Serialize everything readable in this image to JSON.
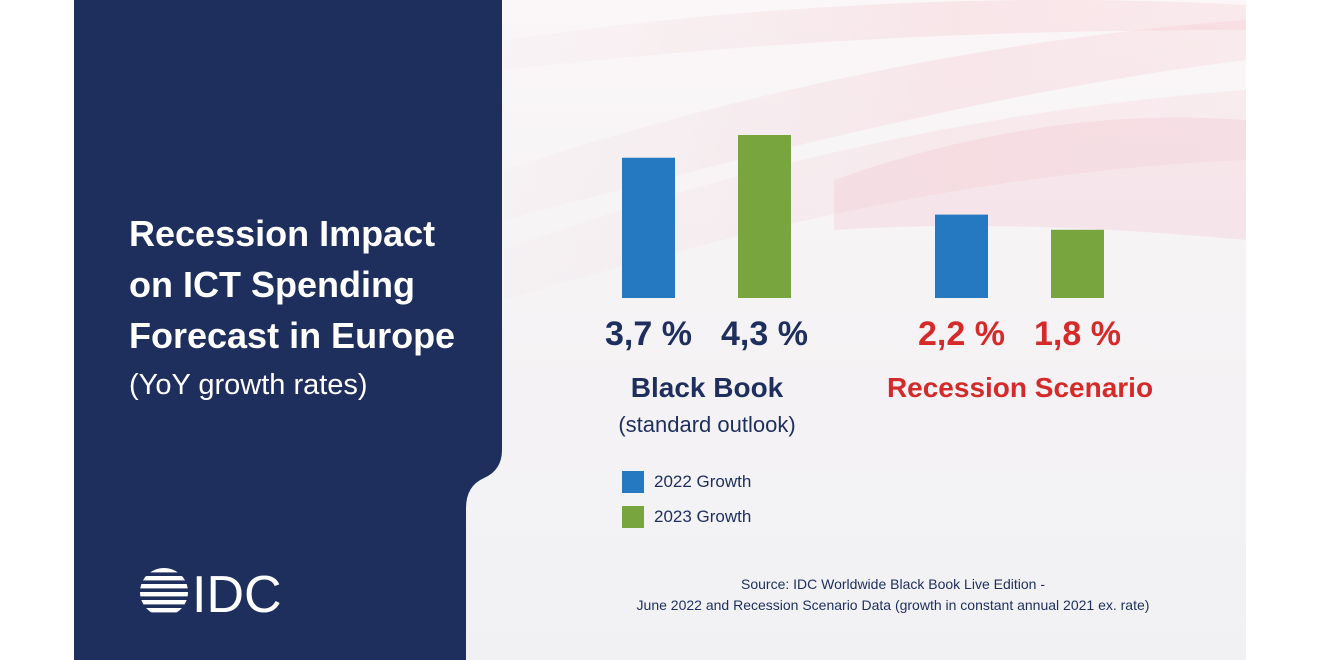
{
  "title_lines": [
    "Recession Impact",
    "on ICT Spending",
    "Forecast in Europe"
  ],
  "subtitle": "(YoY growth rates)",
  "logo_text": "IDC",
  "colors": {
    "panel": "#1e2f5e",
    "series_2022": "#2579c0",
    "series_2023": "#78a53e",
    "scenario_red": "#d42a2a"
  },
  "chart_data": {
    "type": "bar",
    "categories": [
      "Black Book",
      "Recession Scenario"
    ],
    "category_sublabels": [
      "(standard outlook)",
      ""
    ],
    "series": [
      {
        "name": "2022 Growth",
        "values": [
          3.7,
          2.2
        ],
        "labels": [
          "3,7 %",
          "2,2 %"
        ]
      },
      {
        "name": "2023 Growth",
        "values": [
          4.3,
          1.8
        ],
        "labels": [
          "4,3 %",
          "1,8 %"
        ]
      }
    ],
    "legend_position": "bottom-left",
    "grid": false
  },
  "source_lines": [
    "Source: IDC Worldwide Black Book Live Edition -",
    "June 2022 and Recession Scenario Data (growth in constant annual 2021 ex. rate)"
  ]
}
